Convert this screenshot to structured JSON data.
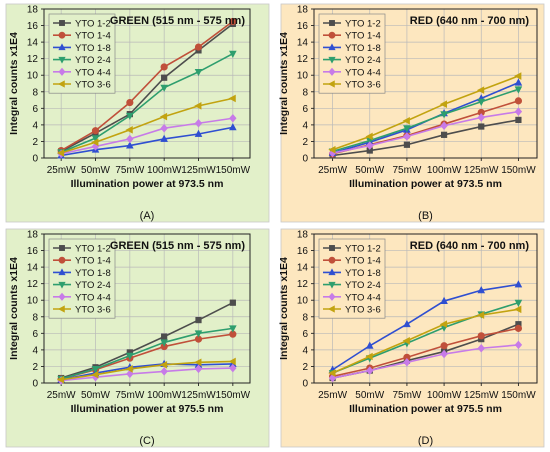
{
  "figure": {
    "panel_letters": [
      "(A)",
      "(B)",
      "(C)",
      "(D)"
    ],
    "colors": {
      "green_bg": "#e2f0c9",
      "red_bg": "#fde7bf",
      "grid": "#b9b9b9",
      "axis": "#222222"
    }
  },
  "chart_data": [
    {
      "type": "line",
      "title": "GREEN (515 nm - 575 nm)",
      "xlabel": "Illumination power at 973.5 nm",
      "ylabel": "Integral counts x1E4",
      "categories": [
        "25mW",
        "50mW",
        "75mW",
        "100mW",
        "125mW",
        "150mW"
      ],
      "ylim": [
        0,
        18
      ],
      "yticks": [
        "0",
        "2",
        "4",
        "6",
        "8",
        "10",
        "12",
        "14",
        "16",
        "18"
      ],
      "grid": true,
      "legend_position": "top-left",
      "background": "#e2f0c9",
      "series": [
        {
          "name": "YTO 1-2",
          "color": "#4d4d4d",
          "marker": "square",
          "values": [
            0.8,
            3.0,
            5.3,
            9.7,
            13.0,
            16.2
          ]
        },
        {
          "name": "YTO 1-4",
          "color": "#c0503a",
          "marker": "circle",
          "values": [
            0.9,
            3.3,
            6.7,
            11.0,
            13.4,
            16.5
          ]
        },
        {
          "name": "YTO 1-8",
          "color": "#2f4fd1",
          "marker": "triangle-up",
          "values": [
            0.3,
            1.0,
            1.5,
            2.3,
            2.9,
            3.7
          ]
        },
        {
          "name": "YTO 2-4",
          "color": "#2e9e6e",
          "marker": "triangle-down",
          "values": [
            0.7,
            2.4,
            5.1,
            8.5,
            10.4,
            12.6
          ]
        },
        {
          "name": "YTO 4-4",
          "color": "#c77be8",
          "marker": "diamond",
          "values": [
            0.5,
            1.4,
            2.3,
            3.6,
            4.2,
            4.8
          ]
        },
        {
          "name": "YTO 3-6",
          "color": "#c2a310",
          "marker": "triangle-left",
          "values": [
            0.6,
            1.9,
            3.4,
            5.0,
            6.3,
            7.2
          ]
        }
      ]
    },
    {
      "type": "line",
      "title": "RED (640 nm - 700 nm)",
      "xlabel": "Illumination power at 973.5 nm",
      "ylabel": "Integral counts x1E4",
      "categories": [
        "25mW",
        "50mW",
        "75mW",
        "100mW",
        "125mW",
        "150mW"
      ],
      "ylim": [
        0,
        18
      ],
      "yticks": [
        "0",
        "2",
        "4",
        "6",
        "8",
        "10",
        "12",
        "14",
        "16",
        "18"
      ],
      "grid": true,
      "legend_position": "top-left",
      "background": "#fde7bf",
      "series": [
        {
          "name": "YTO 1-2",
          "color": "#4d4d4d",
          "marker": "square",
          "values": [
            0.3,
            0.9,
            1.6,
            2.8,
            3.8,
            4.6
          ]
        },
        {
          "name": "YTO 1-4",
          "color": "#c0503a",
          "marker": "circle",
          "values": [
            0.5,
            1.6,
            2.7,
            4.1,
            5.5,
            6.9
          ]
        },
        {
          "name": "YTO 1-8",
          "color": "#2f4fd1",
          "marker": "triangle-up",
          "values": [
            0.6,
            1.9,
            3.4,
            5.4,
            7.2,
            9.1
          ]
        },
        {
          "name": "YTO 2-4",
          "color": "#2e9e6e",
          "marker": "triangle-down",
          "values": [
            0.8,
            2.1,
            3.6,
            5.3,
            6.8,
            8.3
          ]
        },
        {
          "name": "YTO 4-4",
          "color": "#c77be8",
          "marker": "diamond",
          "values": [
            0.6,
            1.5,
            2.6,
            3.9,
            4.9,
            5.6
          ]
        },
        {
          "name": "YTO 3-6",
          "color": "#c2a310",
          "marker": "triangle-left",
          "values": [
            1.0,
            2.6,
            4.5,
            6.5,
            8.2,
            9.9
          ]
        }
      ]
    },
    {
      "type": "line",
      "title": "GREEN (515 nm - 575 nm)",
      "xlabel": "Illumination power at 975.5 nm",
      "ylabel": "Integral counts x1E4",
      "categories": [
        "25mW",
        "50mW",
        "75mW",
        "100mW",
        "125mW",
        "150mW"
      ],
      "ylim": [
        0,
        18
      ],
      "yticks": [
        "0",
        "2",
        "4",
        "6",
        "8",
        "10",
        "12",
        "14",
        "16",
        "18"
      ],
      "grid": true,
      "legend_position": "top-left",
      "background": "#e2f0c9",
      "series": [
        {
          "name": "YTO 1-2",
          "color": "#4d4d4d",
          "marker": "square",
          "values": [
            0.6,
            1.9,
            3.7,
            5.6,
            7.6,
            9.7
          ]
        },
        {
          "name": "YTO 1-4",
          "color": "#c0503a",
          "marker": "circle",
          "values": [
            0.5,
            1.6,
            3.0,
            4.4,
            5.3,
            5.9
          ]
        },
        {
          "name": "YTO 1-8",
          "color": "#2f4fd1",
          "marker": "triangle-up",
          "values": [
            0.4,
            1.2,
            1.9,
            2.3,
            2.2,
            2.3
          ]
        },
        {
          "name": "YTO 2-4",
          "color": "#2e9e6e",
          "marker": "triangle-down",
          "values": [
            0.5,
            1.7,
            3.3,
            4.9,
            6.0,
            6.6
          ]
        },
        {
          "name": "YTO 4-4",
          "color": "#c77be8",
          "marker": "diamond",
          "values": [
            0.3,
            0.7,
            1.1,
            1.4,
            1.7,
            1.8
          ]
        },
        {
          "name": "YTO 3-6",
          "color": "#c2a310",
          "marker": "triangle-left",
          "values": [
            0.4,
            1.0,
            1.7,
            2.2,
            2.5,
            2.6
          ]
        }
      ]
    },
    {
      "type": "line",
      "title": "RED (640 nm - 700 nm)",
      "xlabel": "Illumination power at 975.5 nm",
      "ylabel": "Integral counts x1E4",
      "categories": [
        "25mW",
        "50mW",
        "75mW",
        "100mW",
        "125mW",
        "150mW"
      ],
      "ylim": [
        0,
        18
      ],
      "yticks": [
        "0",
        "2",
        "4",
        "6",
        "8",
        "10",
        "12",
        "14",
        "16",
        "18"
      ],
      "grid": true,
      "legend_position": "top-left",
      "background": "#fde7bf",
      "series": [
        {
          "name": "YTO 1-2",
          "color": "#4d4d4d",
          "marker": "square",
          "values": [
            0.6,
            1.5,
            2.7,
            3.8,
            5.3,
            7.1
          ]
        },
        {
          "name": "YTO 1-4",
          "color": "#c0503a",
          "marker": "circle",
          "values": [
            0.8,
            1.8,
            3.1,
            4.5,
            5.7,
            6.6
          ]
        },
        {
          "name": "YTO 1-8",
          "color": "#2f4fd1",
          "marker": "triangle-up",
          "values": [
            1.6,
            4.5,
            7.1,
            9.9,
            11.2,
            11.9
          ]
        },
        {
          "name": "YTO 2-4",
          "color": "#2e9e6e",
          "marker": "triangle-down",
          "values": [
            1.2,
            3.0,
            4.8,
            6.7,
            8.3,
            9.7
          ]
        },
        {
          "name": "YTO 4-4",
          "color": "#c77be8",
          "marker": "diamond",
          "values": [
            0.6,
            1.5,
            2.5,
            3.5,
            4.2,
            4.6
          ]
        },
        {
          "name": "YTO 3-6",
          "color": "#c2a310",
          "marker": "triangle-left",
          "values": [
            1.2,
            3.2,
            5.1,
            7.1,
            8.2,
            8.9
          ]
        }
      ]
    }
  ]
}
